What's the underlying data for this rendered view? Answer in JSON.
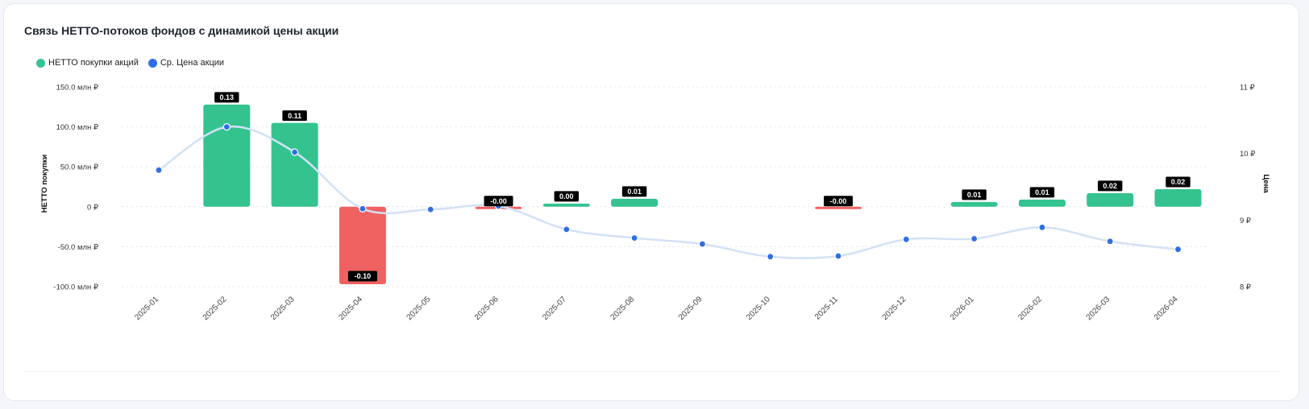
{
  "card": {
    "title": "Связь НЕТТО-потоков фондов с динамикой цены акции"
  },
  "legend": [
    {
      "label": "НЕТТО покупки акций",
      "color": "#34c38f"
    },
    {
      "label": "Ср. Цена акции",
      "color": "#2f6ee6"
    }
  ],
  "chart_data": {
    "type": "bar",
    "categories": [
      "2025-01",
      "2025-02",
      "2025-03",
      "2025-04",
      "2025-05",
      "2025-06",
      "2025-07",
      "2025-08",
      "2025-09",
      "2025-10",
      "2025-11",
      "2025-12",
      "2026-01",
      "2026-02",
      "2026-03",
      "2026-04"
    ],
    "series": [
      {
        "name": "НЕТТО покупки акций",
        "type": "bar",
        "axis": "left",
        "values": [
          0,
          128,
          105,
          -97,
          0,
          -3,
          4,
          10,
          0,
          0,
          -3,
          0,
          6,
          9,
          17,
          22
        ],
        "data_labels": [
          "",
          "0.13",
          "0.11",
          "-0.10",
          "",
          "-0.00",
          "0.00",
          "0.01",
          "",
          "",
          "-0.00",
          "",
          "0.01",
          "0.01",
          "0.02",
          "0.02"
        ],
        "color_positive": "#34c38f",
        "color_negative": "#f06262"
      },
      {
        "name": "Ср. Цена акции",
        "type": "line",
        "axis": "right",
        "values": [
          9.75,
          10.4,
          10.02,
          9.17,
          9.16,
          9.21,
          8.86,
          8.73,
          8.64,
          8.45,
          8.46,
          8.71,
          8.72,
          8.89,
          8.68,
          8.56
        ],
        "color": "#2f6ee6",
        "line_color": "#d3e1f7"
      }
    ],
    "y_left": {
      "label": "НЕТТО покупки",
      "range": [
        -100,
        150
      ],
      "ticks": [
        150,
        100,
        50,
        0,
        -50,
        -100
      ],
      "tick_labels": [
        "150.0 млн ₽",
        "100.0 млн ₽",
        "50.0 млн ₽",
        "0 ₽",
        "-50.0 млн ₽",
        "-100.0 млн ₽"
      ]
    },
    "y_right": {
      "label": "Цена",
      "range": [
        8,
        11
      ],
      "ticks": [
        11,
        10,
        9,
        8
      ],
      "tick_labels": [
        "11 ₽",
        "10 ₽",
        "9 ₽",
        "8 ₽"
      ]
    },
    "grid": true,
    "legend_position": "top-left"
  }
}
